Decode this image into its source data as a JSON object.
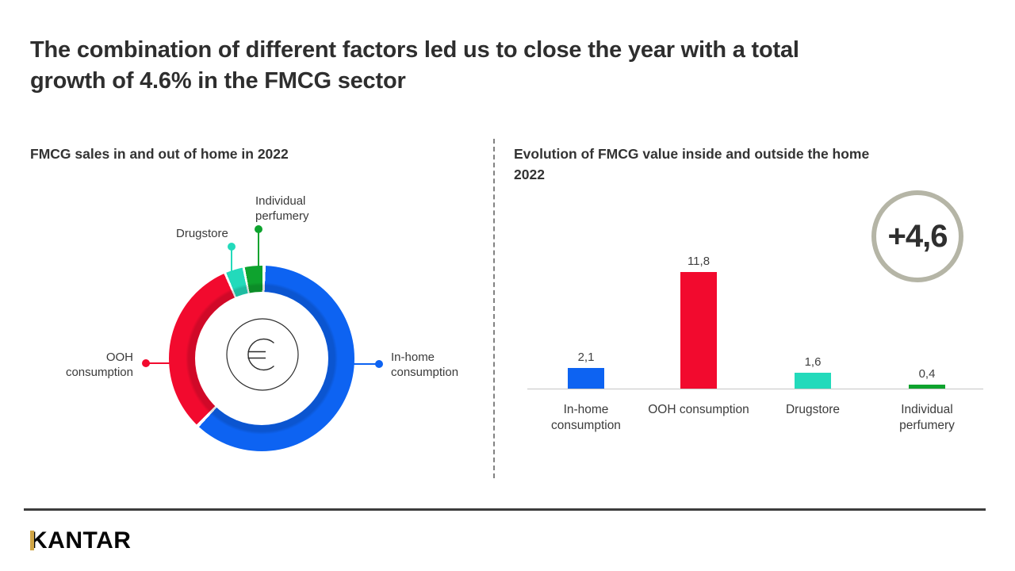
{
  "slide_title": "The combination of different factors led us to close the year with a total\ngrowth of 4.6% in the FMCG sector",
  "left_panel": {
    "title": "FMCG sales in and out of home in 2022",
    "callouts": {
      "individual_perfumery": "Individual\nperfumery",
      "drugstore": "Drugstore",
      "ooh": "OOH\nconsumption",
      "in_home": "In-home\nconsumption"
    }
  },
  "right_panel": {
    "title": "Evolution of FMCG value inside and outside the home\n2022",
    "growth_label": "+4,6",
    "ring_color": "#b5b5a6"
  },
  "footer": {
    "logo": "KANTAR",
    "logo_accent": "#d0a544"
  },
  "chart_data": [
    {
      "type": "pie",
      "title": "FMCG sales in and out of home in 2022",
      "donut": true,
      "center_symbol": "euro-sign",
      "legend_position": "callout-labels",
      "segments": [
        {
          "label": "In-home consumption",
          "share_pct_approx": 61,
          "color": "#0d63f2"
        },
        {
          "label": "OOH consumption",
          "share_pct_approx": 31,
          "color": "#f20a2e"
        },
        {
          "label": "Drugstore",
          "share_pct_approx": 3.5,
          "color": "#23dabb"
        },
        {
          "label": "Individual perfumery",
          "share_pct_approx": 4.5,
          "color": "#0ea32e"
        }
      ],
      "conic": {
        "from_deg": 349.5,
        "stops": [
          {
            "color": "#0ea32e",
            "to": 11
          },
          {
            "color": "#ffffff",
            "to": 13
          },
          {
            "color": "#0d63f2",
            "to": 233
          },
          {
            "color": "#ffffff",
            "to": 235
          },
          {
            "color": "#f20a2e",
            "to": 346.5
          },
          {
            "color": "#ffffff",
            "to": 348
          },
          {
            "color": "#23dabb",
            "to": 358.5
          },
          {
            "color": "#ffffff",
            "to": 360
          }
        ]
      }
    },
    {
      "type": "bar",
      "title": "Evolution of FMCG value inside and outside the home 2022",
      "categories": [
        "In-home consumption",
        "OOH consumption",
        "Drugstore",
        "Individual perfumery"
      ],
      "categories_display": [
        "In-home\nconsumption",
        "OOH consumption",
        "Drugstore",
        "Individual\nperfumery"
      ],
      "values": [
        2.1,
        11.8,
        1.6,
        0.4
      ],
      "value_labels": [
        "2,1",
        "11,8",
        "1,6",
        "0,4"
      ],
      "colors": [
        "#0d63f2",
        "#f20a2e",
        "#23dabb",
        "#0ea32e"
      ],
      "annotation": "+4,6",
      "xlabel": "",
      "ylabel": "",
      "ylim": [
        0,
        12.5
      ],
      "grid": false,
      "legend_position": "none"
    }
  ]
}
